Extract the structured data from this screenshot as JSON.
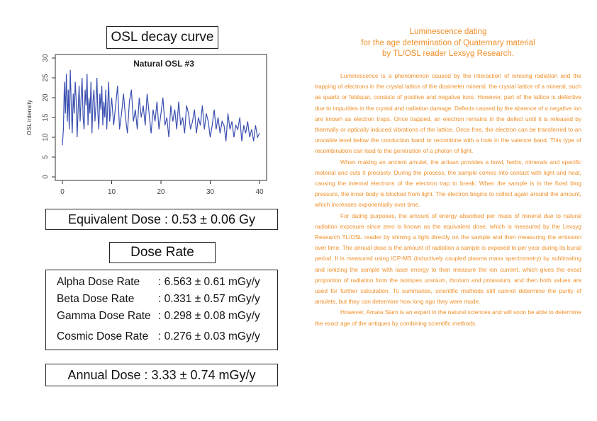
{
  "left": {
    "chart_title_box": "OSL decay curve",
    "equivalent_dose": "Equivalent Dose : 0.53 ± 0.06 Gy",
    "dose_rate_title": "Dose Rate",
    "dose_rates": [
      {
        "label": "Alpha Dose Rate",
        "value": ": 6.563 ± 0.61  mGy/y"
      },
      {
        "label": "Beta Dose Rate",
        "value": ": 0.331 ± 0.57  mGy/y"
      },
      {
        "label": "Gamma Dose Rate",
        "value": ": 0.298 ± 0.08  mGy/y"
      },
      {
        "label": "Cosmic Dose Rate",
        "value": ": 0.276  ±  0.03  mGy/y"
      }
    ],
    "annual_dose": "Annual Dose : 3.33 ± 0.74 mGy/y"
  },
  "right": {
    "title_lines": [
      "Luminescence dating",
      "for the age determination of Quaternary material",
      "by TL/OSL reader Lexsyg Research."
    ],
    "paragraphs": [
      "Luminescence is a phenomenon caused by the interaction of ionising radiation and the trapping of electrons in the crystal lattice of the dosimeter mineral. the crystal lattice of a mineral, such as quartz or feldspar, consists of positive and negative ions. However, part of the lattice is defective due to impurities in the crystal and radiation damage. Defects caused by the absence of a negative ion are known as electron traps. Once trapped, an electron remains in the defect until it is released by thermally or optically induced vibrations of the lattice. Once free, the electron can be transferred to an unstable level below the conduction band or recombine with a hole in the valence band. This type of recombination can lead to the generation of a photon of light.",
      "When making an ancient amulet, the artisan provides a bowl, herbs, minerals and specific material and cuts it precisely. During the process, the sample comes into contact with light and heat, causing the internal electrons of the electron trap to break. When the sample is in the fixed blog pressure, the inner body is blocked from light. The electron begins to collect again around the amount, which increases exponentially over time.",
      "For dating purposes, the amount of energy absorbed per mass of mineral due to natural radiation exposure since zero is known as the equivalent dose, which is measured by the Lexsyg Research TL/OSL reader by shining a light directly on the sample and then measuring the emission over time. The annual dose is the amount of radiation a sample is exposed to per year during its burial period. It is measured using ICP-MS (inductively coupled plasma mass spectrometry) by sublimating and ionizing the sample with laser energy to then measure the ion current, which gives the exact proportion of radiation from the isotopes uranium, thorium and potassium, and then both values are used for further calculation. To summarise, scientific methods still cannot determine the purity of amulets, but they can determine how long ago they were made.",
      "However, Amata Siam is an expert in the natural sciences and will soon be able to determine the exact age of the antiques by combining scientific methods."
    ]
  },
  "colors": {
    "line": "#3a4fb0",
    "accent_text": "#f0902a"
  },
  "chart_data": {
    "type": "line",
    "title": "Natural OSL #3",
    "xlabel": "",
    "ylabel": "OSL intensity",
    "xlim": [
      0,
      40
    ],
    "ylim": [
      0,
      30
    ],
    "xticks": [
      0,
      10,
      20,
      30,
      40
    ],
    "yticks": [
      0,
      5,
      10,
      15,
      20,
      25,
      30
    ],
    "grid": false,
    "series": [
      {
        "x": [
          0,
          0.2,
          0.4,
          0.6,
          0.8,
          1.0,
          1.2,
          1.4,
          1.6,
          1.8,
          2.0,
          2.2,
          2.4,
          2.6,
          2.8,
          3.0,
          3.2,
          3.4,
          3.6,
          3.8,
          4.0,
          4.2,
          4.4,
          4.6,
          4.8,
          5.0,
          5.2,
          5.4,
          5.6,
          5.8,
          6.0,
          6.2,
          6.4,
          6.6,
          6.8,
          7.0,
          7.2,
          7.4,
          7.6,
          7.8,
          8.0,
          8.2,
          8.4,
          8.6,
          8.8,
          9.0,
          9.2,
          9.4,
          9.6,
          9.8,
          10.0,
          10.4,
          10.8,
          11.2,
          11.6,
          12.0,
          12.4,
          12.8,
          13.2,
          13.6,
          14.0,
          14.4,
          14.8,
          15.2,
          15.6,
          16.0,
          16.4,
          16.8,
          17.2,
          17.6,
          18.0,
          18.4,
          18.8,
          19.2,
          19.6,
          20.0,
          20.4,
          20.8,
          21.2,
          21.6,
          22.0,
          22.4,
          22.8,
          23.2,
          23.6,
          24.0,
          24.4,
          24.8,
          25.2,
          25.6,
          26.0,
          26.4,
          26.8,
          27.2,
          27.6,
          28.0,
          28.4,
          28.8,
          29.2,
          29.6,
          30.0,
          30.4,
          30.8,
          31.2,
          31.6,
          32.0,
          32.4,
          32.8,
          33.2,
          33.6,
          34.0,
          34.4,
          34.8,
          35.2,
          35.6,
          36.0,
          36.4,
          36.8,
          37.2,
          37.6,
          38.0,
          38.4,
          38.8,
          39.2,
          39.6,
          40.0
        ],
        "y": [
          8,
          12,
          24,
          16,
          26,
          14,
          22,
          12,
          27,
          18,
          11,
          21,
          16,
          24,
          19,
          10,
          17,
          23,
          14,
          20,
          25,
          15,
          12,
          22,
          18,
          26,
          13,
          20,
          16,
          24,
          11,
          19,
          22,
          14,
          18,
          25,
          16,
          12,
          21,
          17,
          23,
          13,
          19,
          15,
          22,
          12,
          18,
          24,
          14,
          17,
          20,
          13,
          18,
          23,
          12,
          16,
          21,
          15,
          11,
          19,
          22,
          14,
          17,
          12,
          20,
          15,
          18,
          13,
          21,
          16,
          11,
          17,
          14,
          19,
          12,
          16,
          20,
          13,
          15,
          10,
          18,
          14,
          17,
          12,
          19,
          13,
          15,
          11,
          18,
          16,
          12,
          14,
          17,
          11,
          15,
          13,
          18,
          12,
          16,
          14,
          10,
          13,
          17,
          12,
          15,
          11,
          14,
          13,
          9,
          16,
          12,
          14,
          10,
          13,
          12,
          15,
          9,
          13,
          11,
          14,
          10,
          12,
          9,
          13,
          10,
          11
        ]
      }
    ]
  }
}
